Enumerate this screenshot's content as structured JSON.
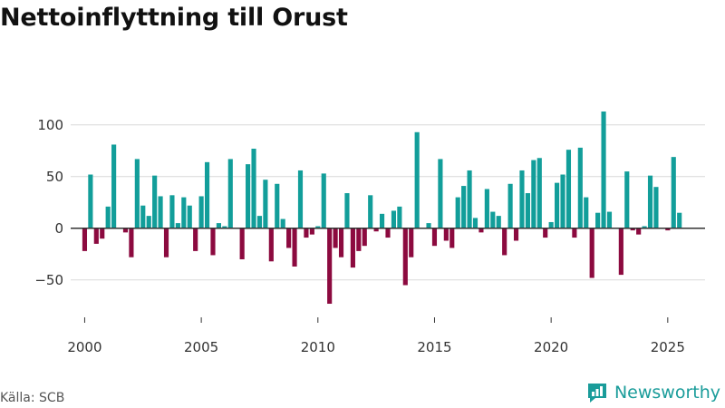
{
  "title": "Nettoinflyttning till Orust",
  "source": "Källa: SCB",
  "brand": "Newsworthy",
  "colors": {
    "positive": "#129e9a",
    "negative": "#8c0a3f",
    "grid": "#d9d9d9",
    "zero": "#333333",
    "brand": "#1a9c9a"
  },
  "chart_data": {
    "type": "bar",
    "title": "Nettoinflyttning till Orust",
    "xlabel": "",
    "ylabel": "",
    "xlim": [
      1999.4,
      2026.6
    ],
    "ylim": [
      -80,
      120
    ],
    "yticks": [
      -50,
      0,
      50,
      100
    ],
    "ytick_labels": [
      "−50",
      "0",
      "50",
      "100"
    ],
    "xticks": [
      2000,
      2005,
      2010,
      2015,
      2020,
      2025
    ],
    "xtick_labels": [
      "2000",
      "2005",
      "2010",
      "2015",
      "2020",
      "2025"
    ],
    "start_year": 2000,
    "step": 0.25,
    "values": [
      -22,
      52,
      -15,
      -10,
      21,
      81,
      0,
      -4,
      -28,
      67,
      22,
      12,
      51,
      31,
      -28,
      32,
      5,
      30,
      22,
      -22,
      31,
      64,
      -26,
      5,
      2,
      67,
      0,
      -30,
      62,
      77,
      12,
      47,
      -32,
      43,
      9,
      -19,
      -37,
      56,
      -9,
      -6,
      2,
      53,
      -73,
      -19,
      -28,
      34,
      -38,
      -22,
      -17,
      32,
      -3,
      14,
      -9,
      17,
      21,
      -55,
      -28,
      93,
      0,
      5,
      -17,
      67,
      -12,
      -19,
      30,
      41,
      56,
      10,
      -4,
      38,
      16,
      12,
      -26,
      43,
      -12,
      56,
      34,
      66,
      68,
      -9,
      6,
      44,
      52,
      76,
      -9,
      78,
      30,
      -48,
      15,
      113,
      16,
      0,
      -45,
      55,
      -2,
      -6,
      2,
      51,
      40,
      0,
      -2,
      69,
      15
    ]
  }
}
